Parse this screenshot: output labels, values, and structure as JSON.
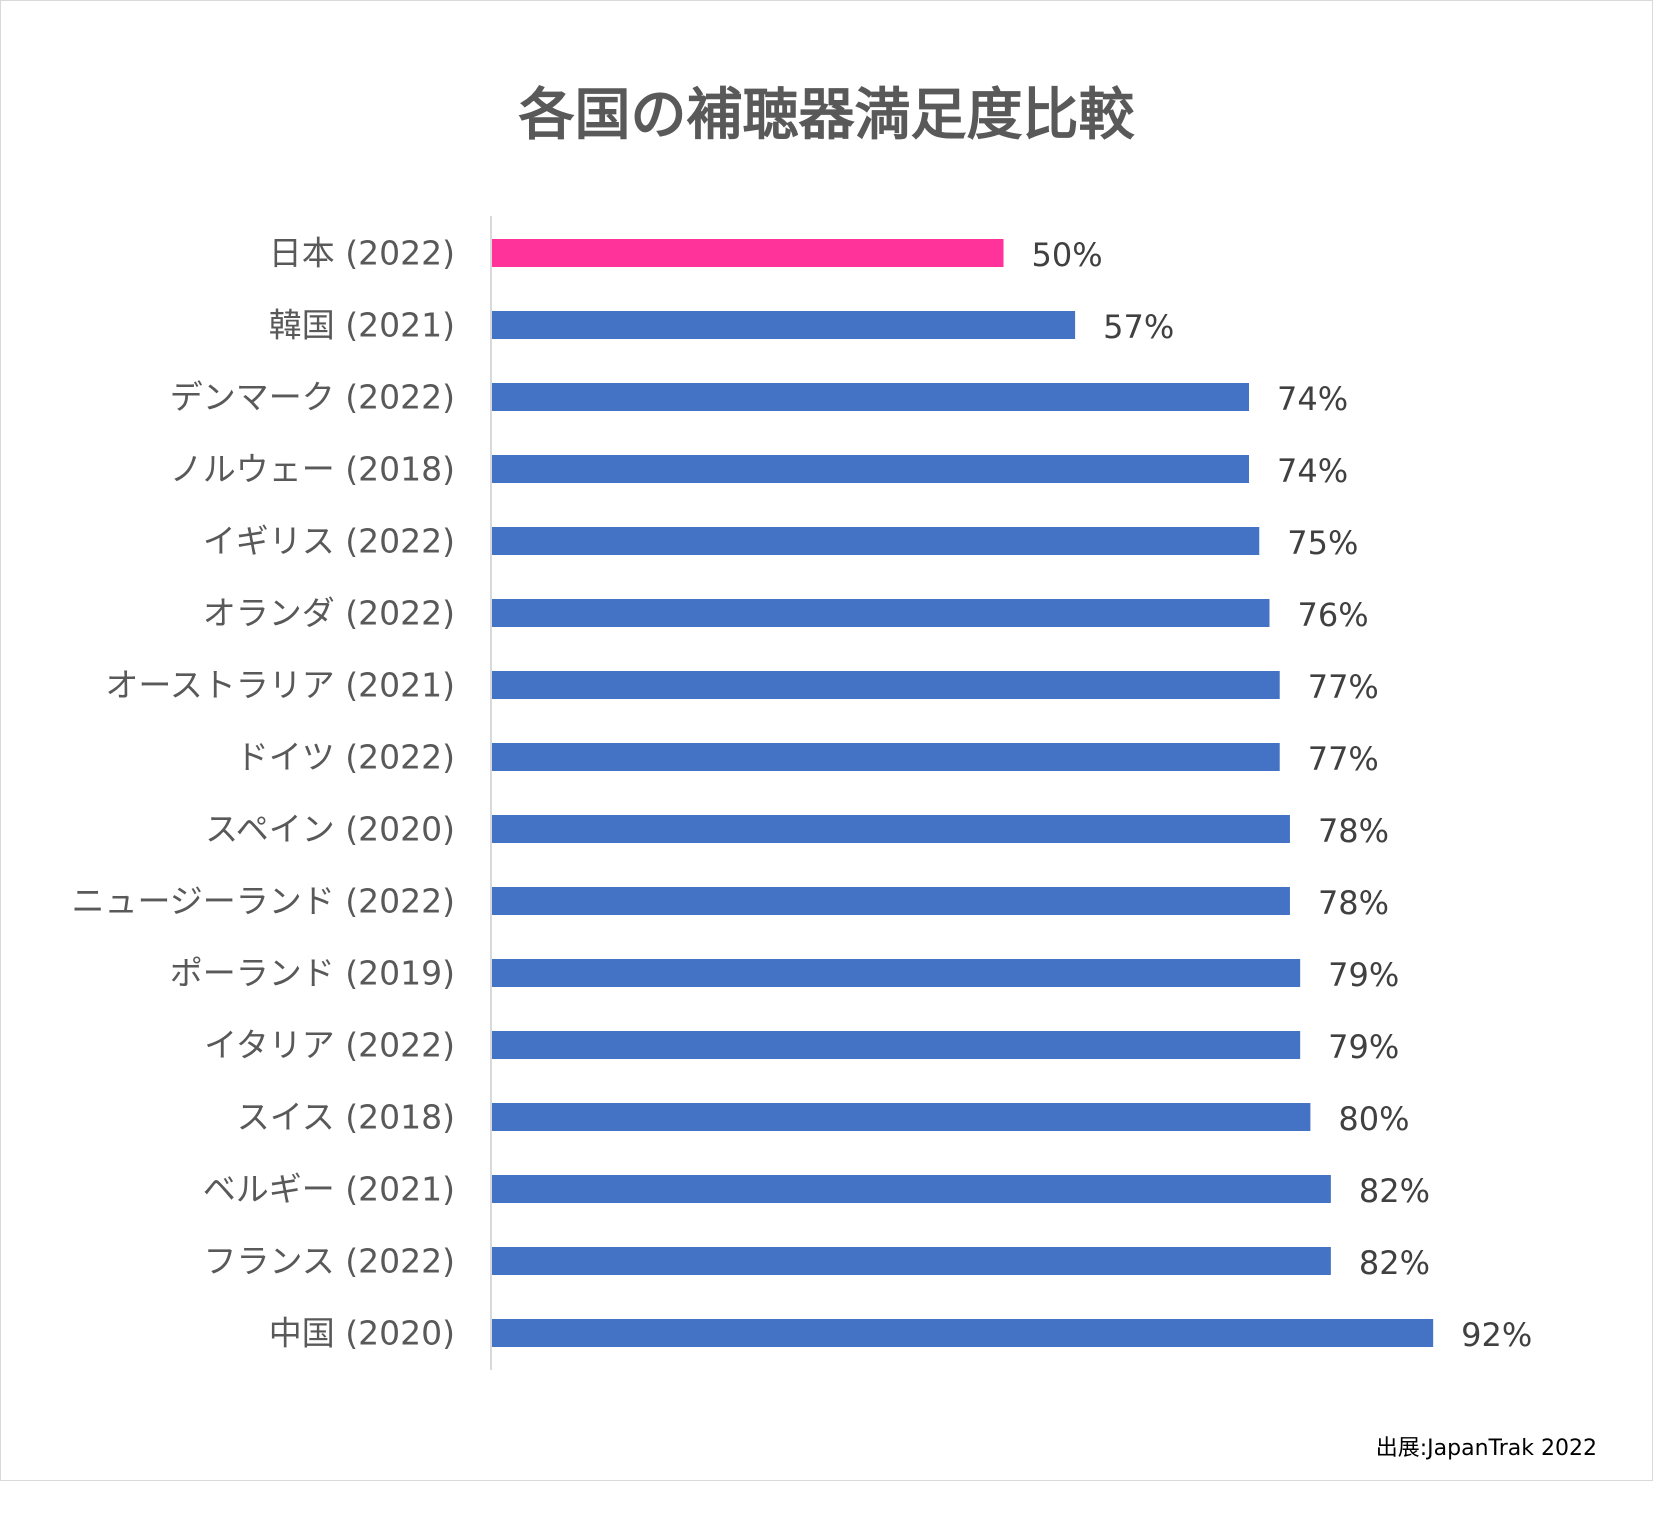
{
  "chart_data": {
    "type": "bar",
    "orientation": "horizontal",
    "title": "各国の補聴器満足度比較",
    "source": "出展:JapanTrak 2022",
    "categories": [
      "日本 (2022)",
      "韓国 (2021)",
      "デンマーク (2022)",
      "ノルウェー (2018)",
      "イギリス (2022)",
      "オランダ (2022)",
      "オーストラリア (2021)",
      "ドイツ (2022)",
      "スペイン (2020)",
      "ニュージーランド (2022)",
      "ポーランド (2019)",
      "イタリア (2022)",
      "スイス (2018)",
      "ベルギー (2021)",
      "フランス (2022)",
      "中国 (2020)"
    ],
    "values": [
      50,
      57,
      74,
      74,
      75,
      76,
      77,
      77,
      78,
      78,
      79,
      79,
      80,
      82,
      82,
      92
    ],
    "value_labels": [
      "50%",
      "57%",
      "74%",
      "74%",
      "75%",
      "76%",
      "77%",
      "77%",
      "78%",
      "78%",
      "79%",
      "79%",
      "80%",
      "82%",
      "82%",
      "92%"
    ],
    "highlight_index": 0,
    "colors": {
      "bar": "#4472c4",
      "highlight": "#ff3399",
      "axis": "#d9d9d9",
      "text": "#595959",
      "label": "#404040"
    },
    "xlim": [
      0,
      100
    ],
    "grid": false,
    "legend": "none"
  }
}
